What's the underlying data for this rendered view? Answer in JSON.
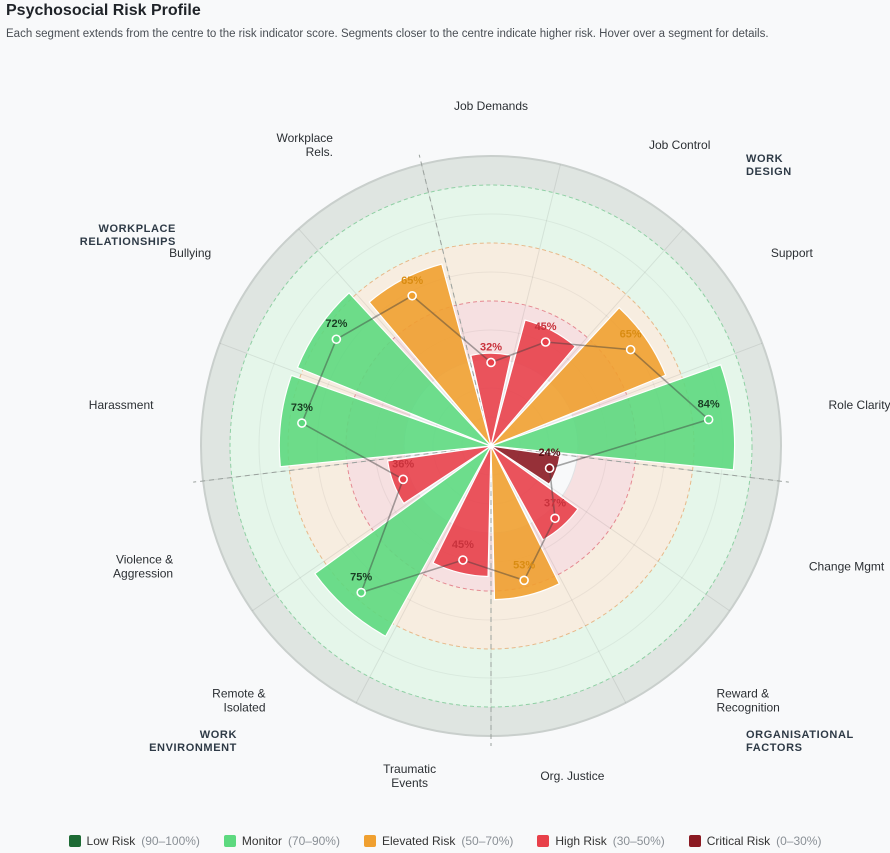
{
  "title": "Psychosocial Risk Profile",
  "subtitle": "Each segment extends from the centre to the risk indicator score. Segments closer to the centre indicate higher risk. Hover over a segment for details.",
  "colors": {
    "low": "#1e6b35",
    "monitor": "#5dd97f",
    "elevated": "#f0a030",
    "high": "#e8404a",
    "critical": "#8b1a22"
  },
  "legend": [
    {
      "key": "low",
      "label": "Low Risk",
      "range": "(90–100%)"
    },
    {
      "key": "monitor",
      "label": "Monitor",
      "range": "(70–90%)"
    },
    {
      "key": "elevated",
      "label": "Elevated Risk",
      "range": "(50–70%)"
    },
    {
      "key": "high",
      "label": "High Risk",
      "range": "(30–50%)"
    },
    {
      "key": "critical",
      "label": "Critical Risk",
      "range": "(0–30%)"
    }
  ],
  "groups": [
    "WORK DESIGN",
    "ORGANISATIONAL FACTORS",
    "WORK ENVIRONMENT",
    "WORKPLACE RELATIONSHIPS"
  ],
  "chart_data": {
    "type": "polar-bar",
    "ylim": [
      0,
      100
    ],
    "bands": [
      {
        "key": "critical",
        "range": [
          0,
          30
        ]
      },
      {
        "key": "high",
        "range": [
          30,
          50
        ]
      },
      {
        "key": "elevated",
        "range": [
          50,
          70
        ]
      },
      {
        "key": "monitor",
        "range": [
          70,
          90
        ]
      },
      {
        "key": "low",
        "range": [
          90,
          100
        ]
      }
    ],
    "categories": [
      "Job Demands",
      "Job Control",
      "Support",
      "Role Clarity",
      "Change Mgmt",
      "Reward & Recognition",
      "Org. Justice",
      "Traumatic Events",
      "Remote & Isolated",
      "Violence & Aggression",
      "Harassment",
      "Bullying",
      "Workplace Rels."
    ],
    "values": [
      32,
      45,
      65,
      84,
      24,
      37,
      53,
      45,
      75,
      36,
      73,
      72,
      65
    ],
    "value_labels": [
      "32%",
      "45%",
      "65%",
      "84%",
      "24%",
      "37%",
      "53%",
      "45%",
      "75%",
      "36%",
      "73%",
      "72%",
      "65%"
    ]
  }
}
